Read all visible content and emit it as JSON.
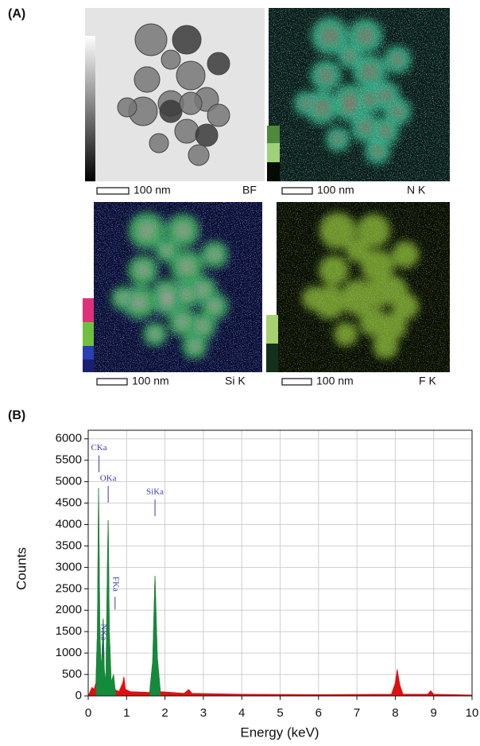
{
  "panel_a": {
    "label": "(A)",
    "images": [
      {
        "name": "BF",
        "scale": "100 nm"
      },
      {
        "name": "N K",
        "scale": "100 nm"
      },
      {
        "name": "Si K",
        "scale": "100 nm"
      },
      {
        "name": "F K",
        "scale": "100 nm"
      }
    ]
  },
  "chart_data": {
    "type": "area",
    "panel_label": "(B)",
    "x_label": "Energy (keV)",
    "y_label": "Counts",
    "x": [
      0.0,
      0.1,
      0.15,
      0.2,
      0.24,
      0.27,
      0.3,
      0.33,
      0.36,
      0.39,
      0.42,
      0.46,
      0.5,
      0.52,
      0.55,
      0.6,
      0.66,
      0.7,
      0.8,
      0.9,
      0.93,
      0.97,
      1.1,
      1.6,
      1.68,
      1.74,
      1.8,
      1.88,
      2.5,
      2.62,
      2.7,
      4,
      6,
      7.9,
      8.0,
      8.05,
      8.12,
      8.2,
      8.85,
      8.92,
      9.0,
      10
    ],
    "values": [
      0,
      200,
      150,
      300,
      1500,
      4850,
      1800,
      600,
      1000,
      1800,
      600,
      300,
      3000,
      4100,
      1500,
      300,
      500,
      150,
      100,
      300,
      450,
      150,
      100,
      80,
      800,
      2800,
      900,
      100,
      60,
      150,
      60,
      40,
      30,
      40,
      300,
      620,
      250,
      40,
      40,
      120,
      40,
      20
    ],
    "color": "#e01010",
    "highlight_color": "#138a3c",
    "highlight_ranges": [
      [
        0.2,
        0.72
      ],
      [
        1.6,
        1.88
      ]
    ],
    "xlim": [
      0,
      10
    ],
    "xticks": [
      0,
      1,
      2,
      3,
      4,
      5,
      6,
      7,
      8,
      9,
      10
    ],
    "ylim": [
      0,
      6200
    ],
    "yticks": [
      0,
      500,
      1000,
      1500,
      2000,
      2500,
      3000,
      3500,
      4000,
      4500,
      5000,
      5500,
      6000
    ],
    "grid": true,
    "annotations": [
      {
        "text": "CKa",
        "x": 0.28,
        "y": 5780,
        "vertical": false
      },
      {
        "text": "OKa",
        "x": 0.52,
        "y": 5070,
        "vertical": false
      },
      {
        "text": "SiKa",
        "x": 1.74,
        "y": 4750,
        "vertical": false
      },
      {
        "text": "FKa",
        "x": 0.7,
        "y": 2610,
        "vertical": true
      },
      {
        "text": "NKa",
        "x": 0.39,
        "y": 1490,
        "vertical": true
      }
    ]
  }
}
